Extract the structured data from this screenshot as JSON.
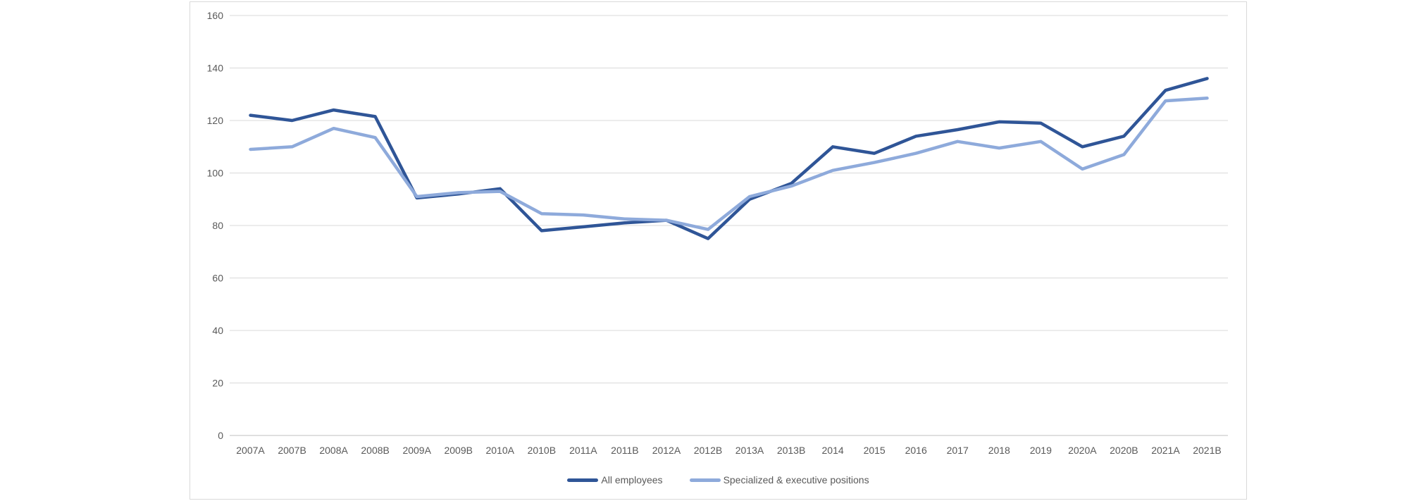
{
  "page": {
    "background": "#FFFFFF"
  },
  "chart_style": {
    "frame_border_color": "#D9D9D9",
    "gridline_color": "#D9D9D9",
    "axis_line_color": "#BFBFBF",
    "tick_label_color": "#595959",
    "legend_label_color": "#595959",
    "series_stroke_width": 4.5
  },
  "chart_data": {
    "type": "line",
    "title": "",
    "xlabel": "",
    "ylabel": "",
    "ylim": [
      0,
      160
    ],
    "yticks": [
      0,
      20,
      40,
      60,
      80,
      100,
      120,
      140,
      160
    ],
    "grid": true,
    "legend_position": "bottom",
    "categories": [
      "2007A",
      "2007B",
      "2008A",
      "2008B",
      "2009A",
      "2009B",
      "2010A",
      "2010B",
      "2011A",
      "2011B",
      "2012A",
      "2012B",
      "2013A",
      "2013B",
      "2014",
      "2015",
      "2016",
      "2017",
      "2018",
      "2019",
      "2020A",
      "2020B",
      "2021A",
      "2021B"
    ],
    "series": [
      {
        "name": "All employees",
        "color": "#2F5597",
        "values": [
          122,
          120,
          124,
          121.5,
          90.5,
          92,
          94,
          78,
          79.5,
          81,
          82,
          75,
          90,
          96,
          110,
          107.5,
          114,
          116.5,
          119.5,
          119,
          110,
          114,
          131.5,
          136
        ]
      },
      {
        "name": "Specialized & executive positions",
        "color": "#8EAADB",
        "values": [
          109,
          110,
          117,
          113.5,
          91,
          92.5,
          93,
          84.5,
          84,
          82.5,
          82,
          78.5,
          91,
          95,
          101,
          104,
          107.5,
          112,
          109.5,
          112,
          101.5,
          107,
          127.5,
          128.5
        ]
      }
    ]
  }
}
